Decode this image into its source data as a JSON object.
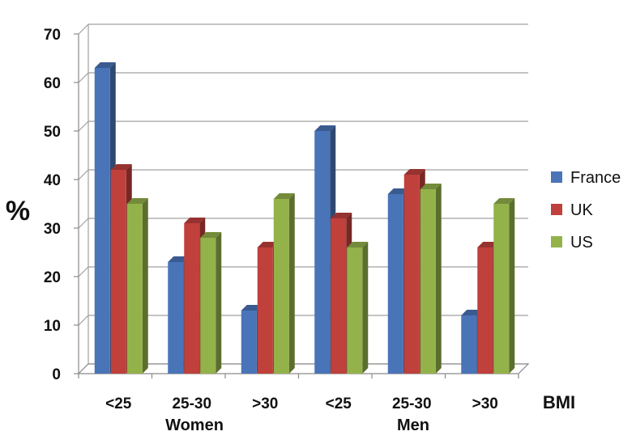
{
  "chart_data": {
    "type": "bar",
    "categories": [
      "<25",
      "25-30",
      ">30",
      "<25",
      "25-30",
      ">30"
    ],
    "groups": [
      "Women",
      "Men"
    ],
    "series": [
      {
        "name": "France",
        "values": [
          63,
          23,
          13,
          50,
          37,
          12
        ]
      },
      {
        "name": "UK",
        "values": [
          42,
          31,
          26,
          32,
          41,
          26
        ]
      },
      {
        "name": "US",
        "values": [
          35,
          28,
          36,
          26,
          38,
          35
        ]
      }
    ],
    "colors": {
      "France": "#4a74b8",
      "UK": "#c0403c",
      "US": "#93b24a"
    },
    "ylabel": "%",
    "xlabel": "BMI",
    "ylim": [
      0,
      70
    ],
    "yticks": [
      "0",
      "10",
      "20",
      "30",
      "40",
      "50",
      "60",
      "70"
    ],
    "grid": true,
    "three_d": true,
    "legend_position": "right"
  }
}
